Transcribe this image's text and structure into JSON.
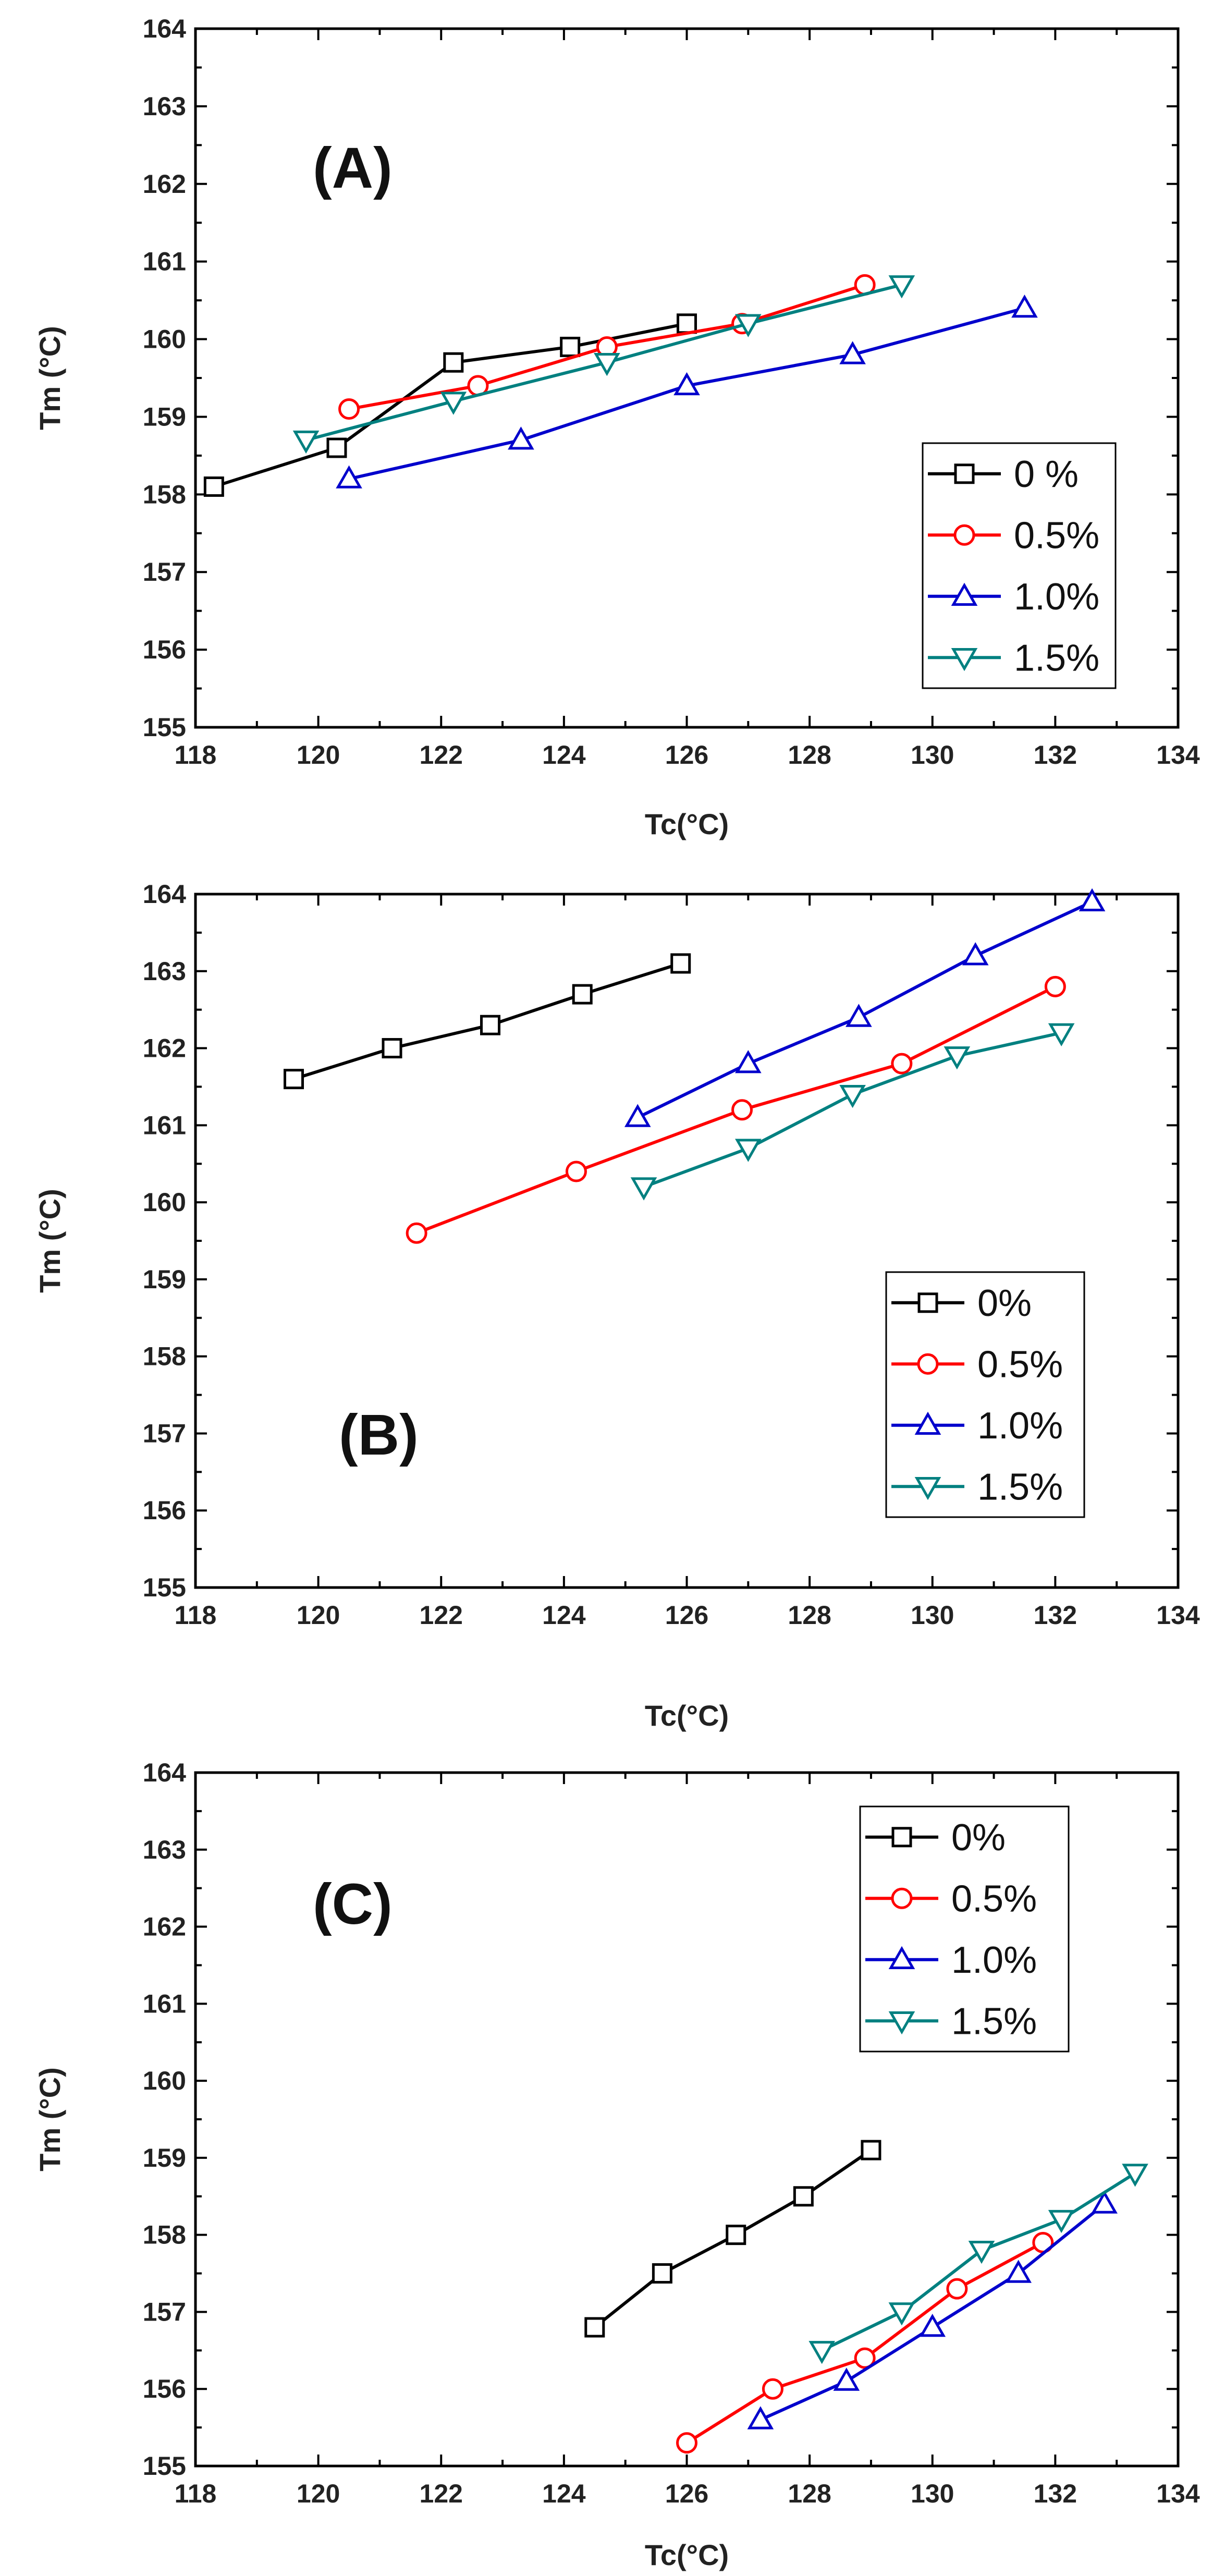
{
  "chart_data": [
    {
      "type": "line",
      "panel_label": "(A)",
      "xlabel": "Tc(°C)",
      "ylabel": "Tm (°C)",
      "xlim": [
        118,
        134
      ],
      "ylim": [
        155,
        164
      ],
      "x_ticks": [
        "118",
        "120",
        "122",
        "124",
        "126",
        "128",
        "130",
        "132",
        "134"
      ],
      "y_ticks": [
        "155",
        "156",
        "157",
        "158",
        "159",
        "160",
        "161",
        "162",
        "163",
        "164"
      ],
      "legend_position": "middle-right",
      "series": [
        {
          "name": "0 %",
          "color": "#000000",
          "marker": "square",
          "x": [
            118.3,
            120.3,
            122.2,
            124.1,
            126.0
          ],
          "y": [
            158.1,
            158.6,
            159.7,
            159.9,
            160.2
          ]
        },
        {
          "name": "0.5%",
          "color": "#ff0000",
          "marker": "circle",
          "x": [
            120.5,
            122.6,
            124.7,
            126.9,
            128.9
          ],
          "y": [
            159.1,
            159.4,
            159.9,
            160.2,
            160.7
          ]
        },
        {
          "name": "1.0%",
          "color": "#0000cc",
          "marker": "triangle-up",
          "x": [
            120.5,
            123.3,
            126.0,
            128.7,
            131.5
          ],
          "y": [
            158.2,
            158.7,
            159.4,
            159.8,
            160.4
          ]
        },
        {
          "name": "1.5%",
          "color": "#008080",
          "marker": "triangle-down",
          "x": [
            119.8,
            122.2,
            124.7,
            127.0,
            129.5
          ],
          "y": [
            158.7,
            159.2,
            159.7,
            160.2,
            160.7
          ]
        }
      ]
    },
    {
      "type": "line",
      "panel_label": "(B)",
      "xlabel": "Tc(°C)",
      "ylabel": "Tm (°C)",
      "xlim": [
        118,
        134
      ],
      "ylim": [
        155,
        164
      ],
      "x_ticks": [
        "118",
        "120",
        "122",
        "124",
        "126",
        "128",
        "130",
        "132",
        "134"
      ],
      "y_ticks": [
        "155",
        "156",
        "157",
        "158",
        "159",
        "160",
        "161",
        "162",
        "163",
        "164"
      ],
      "legend_position": "middle-right",
      "series": [
        {
          "name": "0%",
          "color": "#000000",
          "marker": "square",
          "x": [
            119.6,
            121.2,
            122.8,
            124.3,
            125.9
          ],
          "y": [
            161.6,
            162.0,
            162.3,
            162.7,
            163.1
          ]
        },
        {
          "name": "0.5%",
          "color": "#ff0000",
          "marker": "circle",
          "x": [
            121.6,
            124.2,
            126.9,
            129.5,
            132.0
          ],
          "y": [
            159.6,
            160.4,
            161.2,
            161.8,
            162.8
          ]
        },
        {
          "name": "1.0%",
          "color": "#0000cc",
          "marker": "triangle-up",
          "x": [
            125.2,
            127.0,
            128.8,
            130.7,
            132.6
          ],
          "y": [
            161.1,
            161.8,
            162.4,
            163.2,
            163.9
          ]
        },
        {
          "name": "1.5%",
          "color": "#008080",
          "marker": "triangle-down",
          "x": [
            125.3,
            127.0,
            128.7,
            130.4,
            132.1
          ],
          "y": [
            160.2,
            160.7,
            161.4,
            161.9,
            162.2
          ]
        }
      ]
    },
    {
      "type": "line",
      "panel_label": "(C)",
      "xlabel": "Tc(°C)",
      "ylabel": "Tm (°C)",
      "xlim": [
        118,
        134
      ],
      "ylim": [
        155,
        164
      ],
      "x_ticks": [
        "118",
        "120",
        "122",
        "124",
        "126",
        "128",
        "130",
        "132",
        "134"
      ],
      "y_ticks": [
        "155",
        "156",
        "157",
        "158",
        "159",
        "160",
        "161",
        "162",
        "163",
        "164"
      ],
      "legend_position": "top-right",
      "series": [
        {
          "name": "0%",
          "color": "#000000",
          "marker": "square",
          "x": [
            124.5,
            125.6,
            126.8,
            127.9,
            129.0
          ],
          "y": [
            156.8,
            157.5,
            158.0,
            158.5,
            159.1
          ]
        },
        {
          "name": "0.5%",
          "color": "#ff0000",
          "marker": "circle",
          "x": [
            126.0,
            127.4,
            128.9,
            130.4,
            131.8
          ],
          "y": [
            155.3,
            156.0,
            156.4,
            157.3,
            157.9
          ]
        },
        {
          "name": "1.0%",
          "color": "#0000cc",
          "marker": "triangle-up",
          "x": [
            127.2,
            128.6,
            130.0,
            131.4,
            132.8
          ],
          "y": [
            155.6,
            156.1,
            156.8,
            157.5,
            158.4
          ]
        },
        {
          "name": "1.5%",
          "color": "#008080",
          "marker": "triangle-down",
          "x": [
            128.2,
            129.5,
            130.8,
            132.1,
            133.3
          ],
          "y": [
            156.5,
            157.0,
            157.8,
            158.2,
            158.8
          ]
        }
      ]
    }
  ]
}
